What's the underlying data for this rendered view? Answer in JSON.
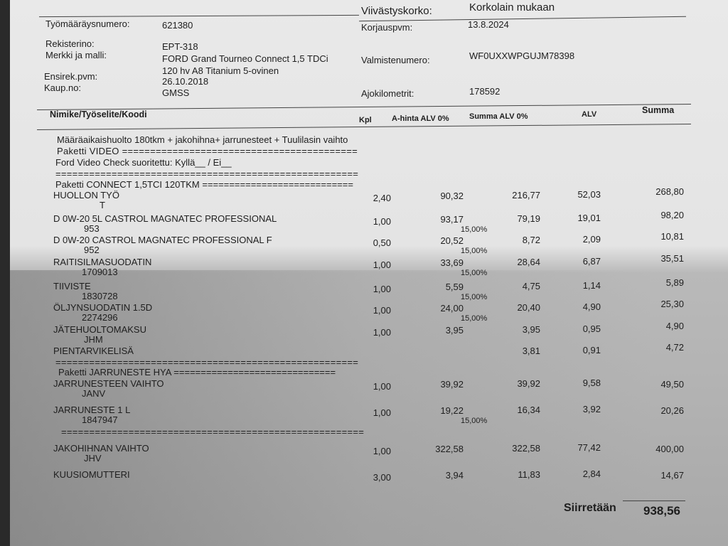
{
  "header": {
    "late_interest_label": "Viivästyskorko:",
    "late_interest_value": "Korkolain mukaan",
    "order_no_label": "Työmääräysnumero:",
    "order_no": "621380",
    "repair_date_label": "Korjauspvm:",
    "repair_date": "13.8.2024",
    "reg_label": "Rekisterino:",
    "reg": "EPT-318",
    "model_label": "Merkki ja malli:",
    "model_line1": "FORD Grand Tourneo Connect 1,5 TDCi",
    "model_line2": "120 hv A8 Titanium 5-ovinen",
    "vin_label": "Valmistenumero:",
    "vin": "WF0UXXWPGUJM78398",
    "first_reg_label": "Ensirek.pvm:",
    "first_reg": "26.10.2018",
    "seller_label": "Kaup.no:",
    "seller": "GMSS",
    "km_label": "Ajokilometrit:",
    "km": "178592"
  },
  "columns": {
    "item": "Nimike/Työselite/Koodi",
    "qty": "Kpl",
    "unit_price": "A-hinta ALV 0%",
    "sum_net": "Summa ALV 0%",
    "vat": "ALV",
    "total": "Summa"
  },
  "notes": {
    "line1": "Määräaikaishuolto 180tkm + jakohihna+ jarrunesteet + Tuulilasin vaihto",
    "line2": "Paketti VIDEO ==========================================",
    "line3": "Ford Video Check suoritettu: Kyllä__ / Ei__",
    "line4": "======================================================",
    "line5": "Paketti CONNECT 1,5TCI 120TKM ============================",
    "sep1": "======================================================",
    "line6": "Paketti JARRUNESTE HYA ==============================",
    "sep2": "=====================================================",
    "sep3": "======================================================"
  },
  "items": [
    {
      "name": "HUOLLON TYÖ",
      "code": "T",
      "qty": "2,40",
      "unit_price": "90,32",
      "discount": "",
      "sum_net": "216,77",
      "vat": "52,03",
      "total": "268,80"
    },
    {
      "name": "D 0W-20 5L CASTROL MAGNATEC PROFESSIONAL",
      "code": "953",
      "qty": "1,00",
      "unit_price": "93,17",
      "discount": "15,00%",
      "sum_net": "79,19",
      "vat": "19,01",
      "total": "98,20"
    },
    {
      "name": "D 0W-20 CASTROL MAGNATEC PROFESSIONAL  F",
      "code": "952",
      "qty": "0,50",
      "unit_price": "20,52",
      "discount": "15,00%",
      "sum_net": "8,72",
      "vat": "2,09",
      "total": "10,81"
    },
    {
      "name": "RAITISILMASUODATIN",
      "code": "1709013",
      "qty": "1,00",
      "unit_price": "33,69",
      "discount": "15,00%",
      "sum_net": "28,64",
      "vat": "6,87",
      "total": "35,51"
    },
    {
      "name": "TIIVISTE",
      "code": "1830728",
      "qty": "1,00",
      "unit_price": "5,59",
      "discount": "15,00%",
      "sum_net": "4,75",
      "vat": "1,14",
      "total": "5,89"
    },
    {
      "name": "ÖLJYNSUODATIN 1.5D",
      "code": "2274296",
      "qty": "1,00",
      "unit_price": "24,00",
      "discount": "15,00%",
      "sum_net": "20,40",
      "vat": "4,90",
      "total": "25,30"
    },
    {
      "name": "JÄTEHUOLTOMAKSU",
      "code": "JHM",
      "qty": "1,00",
      "unit_price": "3,95",
      "discount": "",
      "sum_net": "3,95",
      "vat": "0,95",
      "total": "4,90"
    },
    {
      "name": "PIENTARVIKELISÄ",
      "code": "",
      "qty": "",
      "unit_price": "",
      "discount": "",
      "sum_net": "3,81",
      "vat": "0,91",
      "total": "4,72"
    },
    {
      "name": "JARRUNESTEEN VAIHTO",
      "code": "JANV",
      "qty": "1,00",
      "unit_price": "39,92",
      "discount": "",
      "sum_net": "39,92",
      "vat": "9,58",
      "total": "49,50"
    },
    {
      "name": "JARRUNESTE 1 L",
      "code": "1847947",
      "qty": "1,00",
      "unit_price": "19,22",
      "discount": "15,00%",
      "sum_net": "16,34",
      "vat": "3,92",
      "total": "20,26"
    },
    {
      "name": "JAKOHIHNAN VAIHTO",
      "code": "JHV",
      "qty": "1,00",
      "unit_price": "322,58",
      "discount": "",
      "sum_net": "322,58",
      "vat": "77,42",
      "total": "400,00"
    },
    {
      "name": "KUUSIOMUTTERI",
      "code": "",
      "qty": "3,00",
      "unit_price": "3,94",
      "discount": "",
      "sum_net": "11,83",
      "vat": "2,84",
      "total": "14,67"
    }
  ],
  "footer": {
    "carried_label": "Siirretään",
    "carried_value": "938,56"
  }
}
